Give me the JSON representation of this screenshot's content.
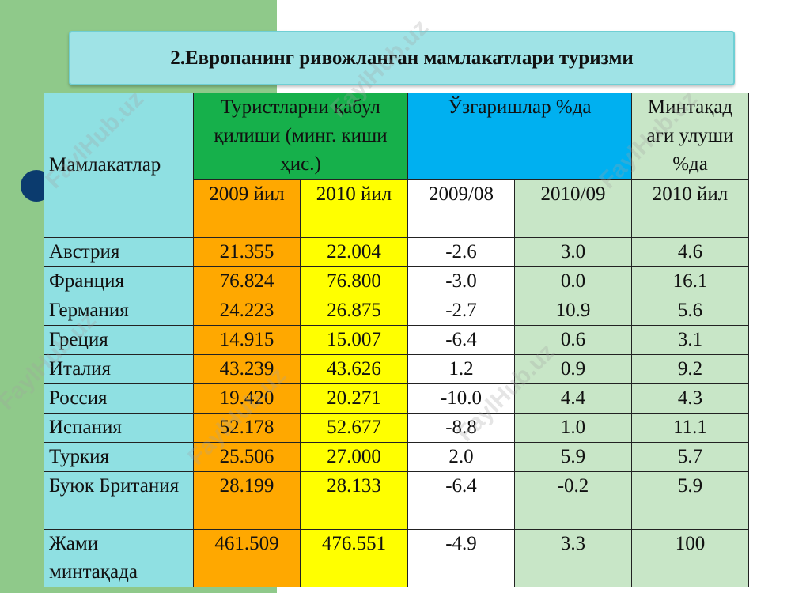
{
  "title": "2.Европанинг ривожланган мамлакатлари туризми",
  "watermark_text": "FaylHub.uz",
  "headers": {
    "country": "Мамлакатлар",
    "arrivals": "Туристларни қабул қилиши (минг. киши ҳис.)",
    "changes": "Ўзгаришлар %да",
    "share": "Минтақад аги улуши %да",
    "y2009": "2009 йил",
    "y2010": "2010 йил",
    "ch0908": "2009/08",
    "ch1009": "2010/09",
    "share2010": "2010 йил"
  },
  "rows": [
    {
      "country": "Австрия",
      "a2009": "21.355",
      "a2010": "22.004",
      "ch0908": "-2.6",
      "ch1009": "3.0",
      "share": "4.6"
    },
    {
      "country": "Франция",
      "a2009": "76.824",
      "a2010": "76.800",
      "ch0908": "-3.0",
      "ch1009": "0.0",
      "share": "16.1"
    },
    {
      "country": "Германия",
      "a2009": "24.223",
      "a2010": "26.875",
      "ch0908": "-2.7",
      "ch1009": "10.9",
      "share": "5.6"
    },
    {
      "country": "Греция",
      "a2009": "14.915",
      "a2010": "15.007",
      "ch0908": "-6.4",
      "ch1009": "0.6",
      "share": "3.1"
    },
    {
      "country": "Италия",
      "a2009": "43.239",
      "a2010": "43.626",
      "ch0908": "1.2",
      "ch1009": "0.9",
      "share": "9.2"
    },
    {
      "country": "Россия",
      "a2009": "19.420",
      "a2010": "20.271",
      "ch0908": "-10.0",
      "ch1009": "4.4",
      "share": "4.3"
    },
    {
      "country": "Испания",
      "a2009": "52.178",
      "a2010": "52.677",
      "ch0908": "-8.8",
      "ch1009": "1.0",
      "share": "11.1"
    },
    {
      "country": "Туркия",
      "a2009": "25.506",
      "a2010": "27.000",
      "ch0908": "2.0",
      "ch1009": "5.9",
      "share": "5.7"
    },
    {
      "country": "Буюк Британия",
      "a2009": "28.199",
      "a2010": "28.133",
      "ch0908": "-6.4",
      "ch1009": "-0.2",
      "share": "5.9"
    },
    {
      "country": "Жами минтақада",
      "a2009": "461.509",
      "a2010": "476.551",
      "ch0908": "-4.9",
      "ch1009": "3.3",
      "share": "100"
    }
  ]
}
